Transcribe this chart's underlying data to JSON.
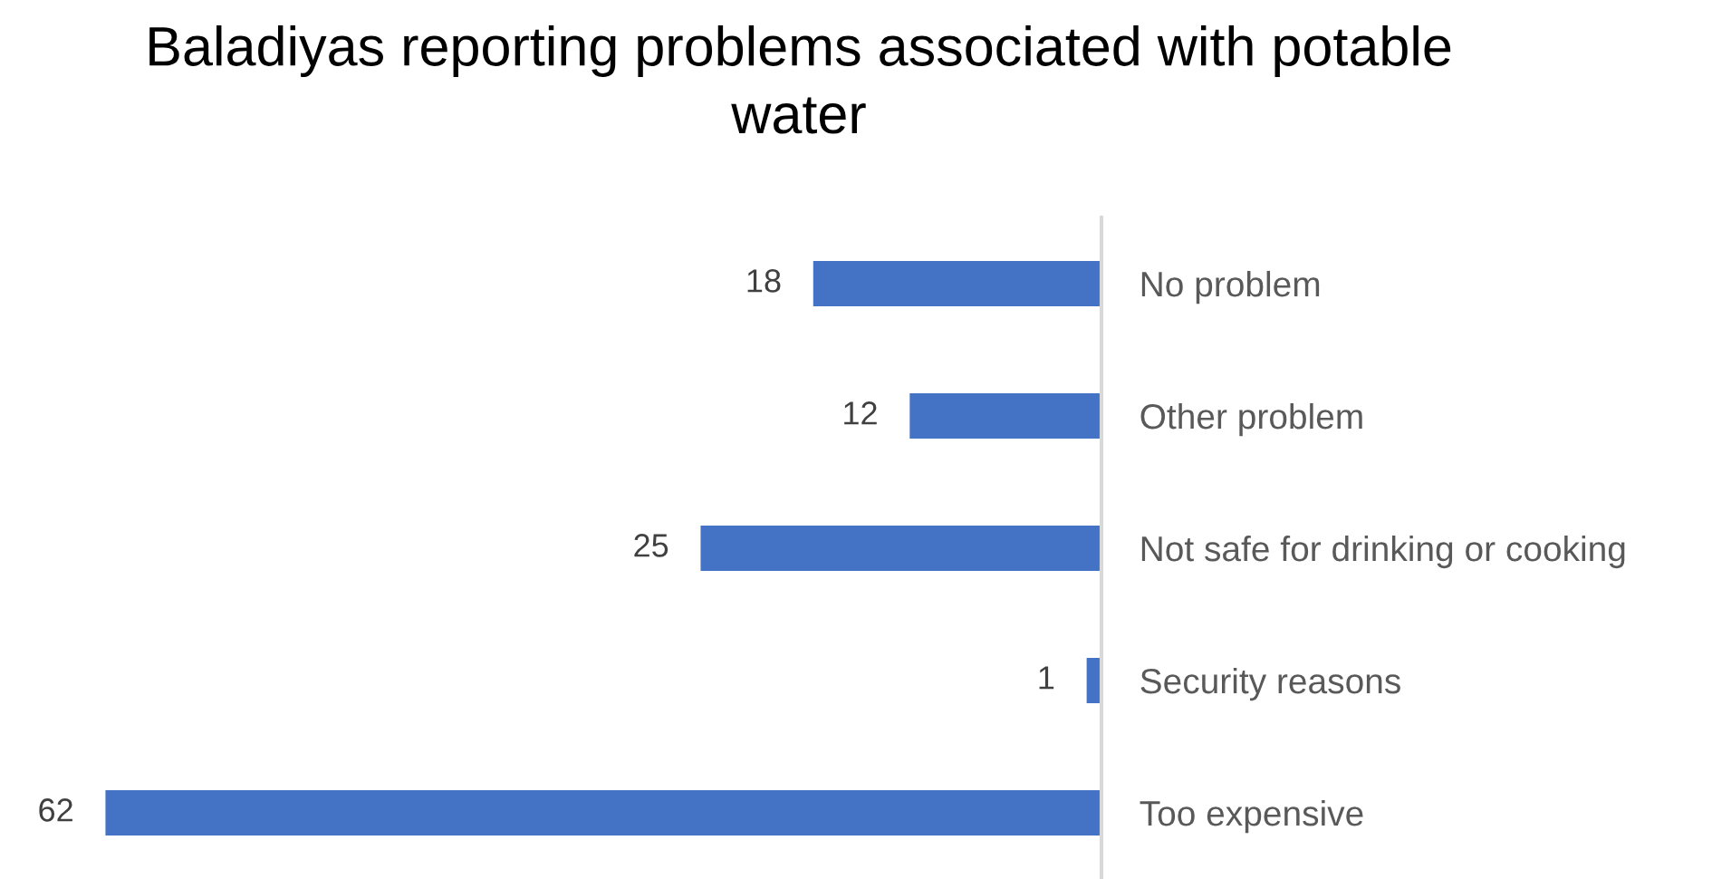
{
  "chart_data": {
    "type": "bar",
    "orientation": "horizontal",
    "title": "Baladiyas reporting problems associated with potable water",
    "categories": [
      "No problem",
      "Other problem",
      "Not safe for drinking or cooking",
      "Security reasons",
      "Too expensive"
    ],
    "values": [
      18,
      12,
      25,
      1,
      62
    ],
    "color": "#4472c4",
    "data_labels": true,
    "tick_labels": "y"
  }
}
